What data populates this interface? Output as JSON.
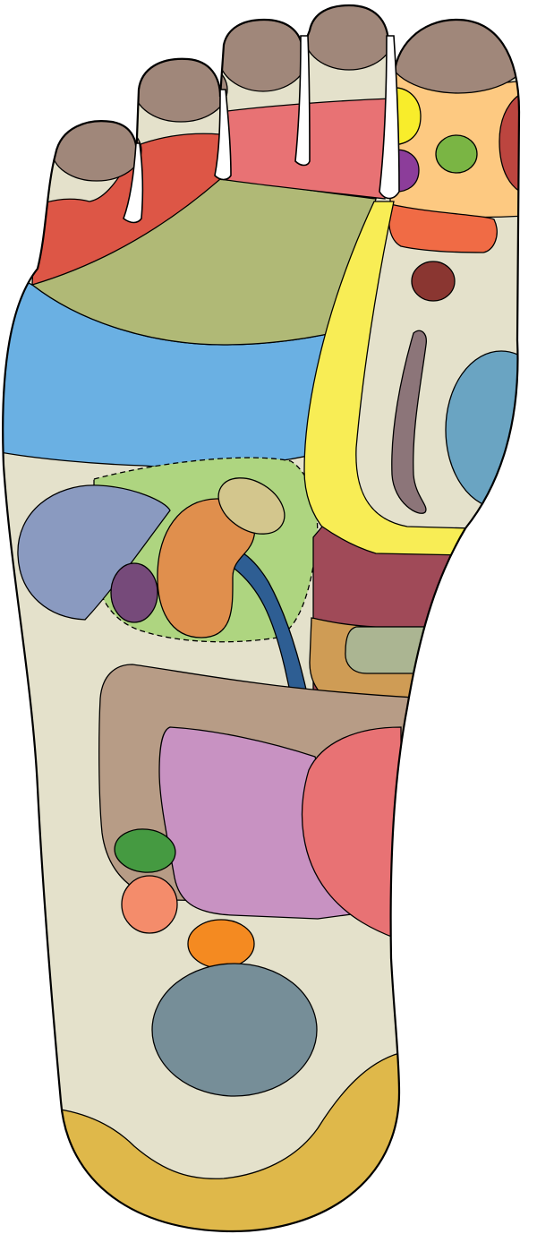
{
  "colors": {
    "background": "#ffffff",
    "outline": "#000000",
    "foot_base": "#e4e1cb",
    "toe_tip": "#a0877a",
    "toe_band_outer": "#dd5646",
    "toe_band_middle": "#e87274",
    "toe_band_big": "#fdc981",
    "shoulder_band": "#b0b976",
    "upper_band": "#6ab0e3",
    "spine_band": "#f8ed55",
    "big_toe_yellow_spot": "#f8ed2b",
    "big_toe_green_spot": "#7ab544",
    "big_toe_purple_spot": "#8c3d9a",
    "big_toe_red_side": "#bc453f",
    "big_toe_base_band": "#f06b45",
    "dark_red_spot": "#8a3631",
    "thyroid_spine": "#8c7579",
    "side_teal": "#6aa4c2",
    "upper_abdomen_green": "#aed580",
    "lavender_lobe": "#8a9ac0",
    "small_purple_oval": "#764a7a",
    "kidney_orange": "#e08f4d",
    "adrenal_tan": "#d3c68d",
    "ureter_blue": "#2e5e93",
    "maroon_block": "#a04a58",
    "tan_block": "#cf9c55",
    "sage_block": "#abb592",
    "intestine_brown": "#b79c86",
    "intestine_pink": "#c892c2",
    "bladder_coral": "#e87274",
    "green_oval": "#459a41",
    "salmon_oval": "#f48c6b",
    "orange_oval": "#f48a21",
    "heel_gray": "#768e98",
    "heel_band": "#dfb84a"
  }
}
